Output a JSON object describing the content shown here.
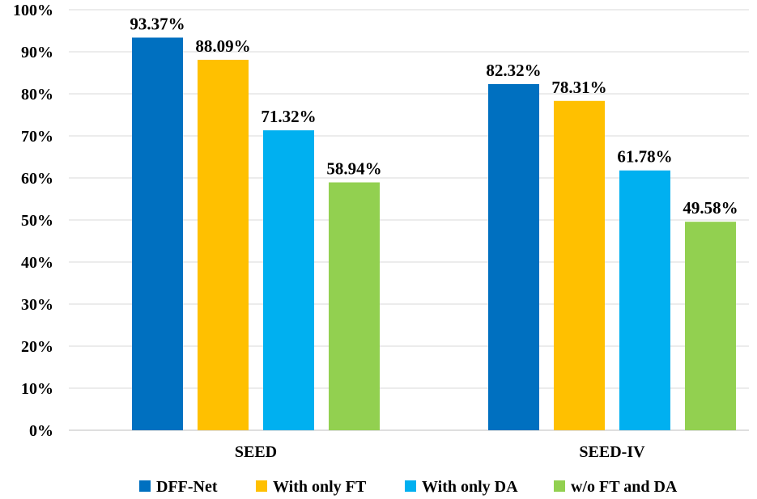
{
  "chart_data": {
    "type": "bar",
    "title": "",
    "xlabel": "",
    "ylabel": "",
    "categories": [
      "SEED",
      "SEED-IV"
    ],
    "ylim": [
      0,
      100
    ],
    "y_ticks": [
      0,
      10,
      20,
      30,
      40,
      50,
      60,
      70,
      80,
      90,
      100
    ],
    "y_tick_labels": [
      "0%",
      "10%",
      "20%",
      "30%",
      "40%",
      "50%",
      "60%",
      "70%",
      "80%",
      "90%",
      "100%"
    ],
    "grid": true,
    "legend_position": "bottom",
    "series": [
      {
        "name": "DFF-Net",
        "color": "#0070C0",
        "values": [
          93.37,
          82.32
        ],
        "labels": [
          "93.37%",
          "82.32%"
        ]
      },
      {
        "name": "With only FT",
        "color": "#FFC000",
        "values": [
          88.09,
          78.31
        ],
        "labels": [
          "88.09%",
          "78.31%"
        ]
      },
      {
        "name": "With only DA",
        "color": "#00B0F0",
        "values": [
          71.32,
          61.78
        ],
        "labels": [
          "71.32%",
          "61.78%"
        ]
      },
      {
        "name": "w/o FT and DA",
        "color": "#92D050",
        "values": [
          58.94,
          49.58
        ],
        "labels": [
          "58.94%",
          "49.58%"
        ]
      }
    ]
  }
}
